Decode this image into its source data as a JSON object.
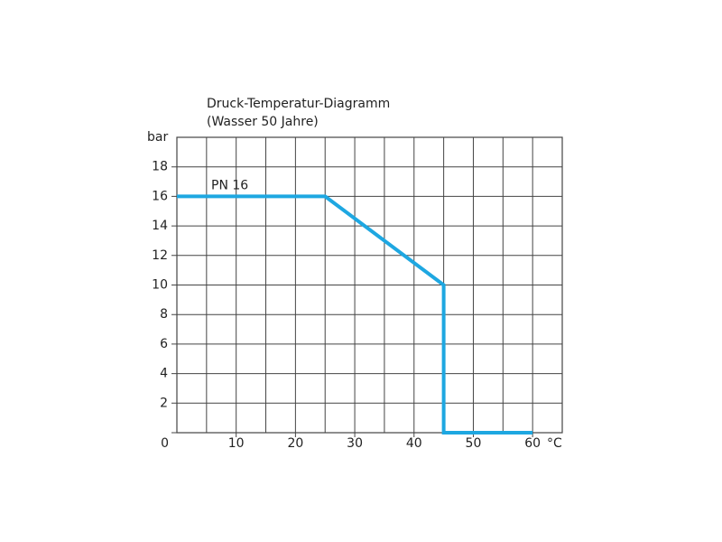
{
  "chart_data": {
    "type": "line",
    "title": "Druck-Temperatur-Diagramm",
    "subtitle": "(Wasser 50 Jahre)",
    "y_label": "bar",
    "x_label": "°C",
    "x": [
      0,
      25,
      45,
      45,
      60
    ],
    "series": [
      {
        "name": "PN 16",
        "color": "#1ea7e1",
        "values": [
          16,
          16,
          10,
          0,
          0
        ]
      }
    ],
    "xlim": [
      0,
      65
    ],
    "xticks": [
      10,
      20,
      30,
      40,
      50,
      60
    ],
    "xgrid_minor": [
      5,
      15,
      25,
      35,
      45,
      55
    ],
    "ylim": [
      0,
      20
    ],
    "yticks": [
      0,
      2,
      4,
      6,
      8,
      10,
      12,
      14,
      16,
      18
    ],
    "grid": true
  }
}
